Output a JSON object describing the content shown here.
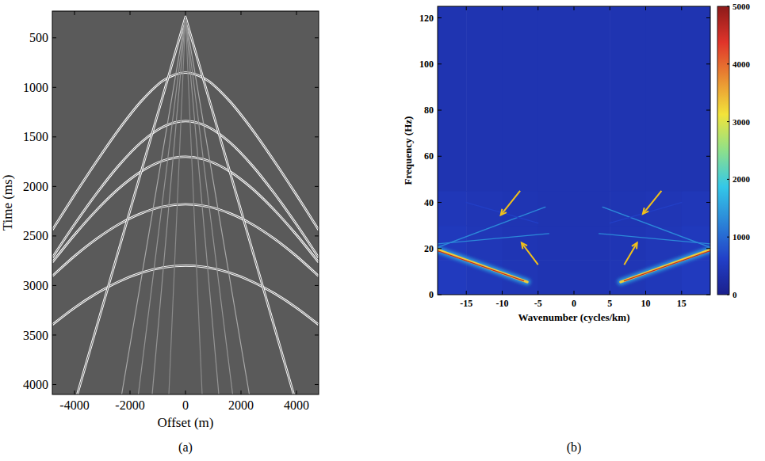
{
  "chart_data": [
    {
      "type": "seismic",
      "label": "(a)",
      "x_label": "Offset (m)",
      "y_label": "Time (ms)",
      "xlim": [
        -4800,
        4800
      ],
      "ylim": [
        230,
        4100
      ],
      "xticks": [
        -4000,
        -2000,
        0,
        2000,
        4000
      ],
      "yticks": [
        500,
        1000,
        1500,
        2000,
        2500,
        3000,
        3500,
        4000
      ],
      "series": [
        {
          "type": "spline",
          "color": "#ffffff",
          "x": [
            -4800,
            -4000,
            -3200,
            -2400,
            -1600,
            -800,
            0,
            800,
            1600,
            2400,
            3200,
            4000,
            4800
          ],
          "values": [
            2439,
            2086,
            1745,
            1424,
            1142,
            931,
            850,
            931,
            1142,
            1424,
            1745,
            2086,
            2439
          ]
        },
        {
          "type": "spline",
          "color": "#ffffff",
          "x": [
            -4800,
            -4000,
            -3200,
            -2400,
            -1600,
            -800,
            0,
            800,
            1600,
            2400,
            3200,
            4000,
            4800
          ],
          "values": [
            2718,
            2383,
            2069,
            1787,
            1555,
            1397,
            1340,
            1397,
            1555,
            1787,
            2069,
            2383,
            2718
          ]
        },
        {
          "type": "spline",
          "color": "#ffffff",
          "x": [
            -4800,
            -4000,
            -3200,
            -2400,
            -1600,
            -800,
            0,
            800,
            1600,
            2400,
            3200,
            4000,
            4800
          ],
          "values": [
            2766,
            2489,
            2238,
            2020,
            1849,
            1739,
            1700,
            1739,
            1849,
            2020,
            2238,
            2489,
            2766
          ]
        },
        {
          "type": "spline",
          "color": "#ffffff",
          "x": [
            -4800,
            -4000,
            -3200,
            -2400,
            -1600,
            -800,
            0,
            800,
            1600,
            2400,
            3200,
            4000,
            4800
          ],
          "values": [
            2905,
            2704,
            2528,
            2382,
            2272,
            2203,
            2180,
            2203,
            2272,
            2382,
            2528,
            2704,
            2905
          ]
        },
        {
          "type": "spline",
          "color": "#ffffff",
          "x": [
            -4800,
            -4000,
            -3200,
            -2400,
            -1600,
            -800,
            0,
            800,
            1600,
            2400,
            3200,
            4000,
            4800
          ],
          "values": [
            3395,
            3225,
            3079,
            2960,
            2872,
            2818,
            2800,
            2818,
            2872,
            2960,
            3079,
            3225,
            3395
          ]
        },
        {
          "type": "line",
          "color": "#ffffff",
          "x": [
            -3900,
            0,
            3900
          ],
          "values": [
            4100,
            290,
            4100
          ]
        },
        {
          "type": "line",
          "color": "#a8a8a8",
          "x": [
            -2300,
            0,
            2300
          ],
          "values": [
            4100,
            290,
            4100
          ]
        },
        {
          "type": "line",
          "color": "#959595",
          "x": [
            -1700,
            0,
            1700
          ],
          "values": [
            4100,
            290,
            4100
          ]
        },
        {
          "type": "line",
          "color": "#959595",
          "x": [
            -1200,
            0,
            1200
          ],
          "values": [
            4100,
            290,
            4100
          ]
        },
        {
          "type": "line",
          "color": "#8a8a8a",
          "x": [
            -600,
            0,
            600
          ],
          "values": [
            4100,
            290,
            4100
          ]
        }
      ]
    },
    {
      "type": "heatmap",
      "label": "(b)",
      "x_label": "Wavenumber (cycles/km)",
      "y_label": "Frequency (Hz)",
      "xlim": [
        -19,
        19
      ],
      "ylim": [
        0,
        125
      ],
      "xticks": [
        -15,
        -10,
        -5,
        0,
        5,
        10,
        15
      ],
      "yticks": [
        0,
        20,
        40,
        60,
        80,
        100,
        120
      ],
      "x_edges": [
        -19,
        -15,
        -10,
        -5,
        5,
        10,
        15,
        19
      ],
      "y_edges": [
        0,
        15,
        30,
        45,
        125
      ],
      "cells": [
        [
          520,
          470,
          430,
          400,
          430,
          470,
          520
        ],
        [
          500,
          450,
          420,
          400,
          420,
          450,
          500
        ],
        [
          460,
          430,
          410,
          390,
          410,
          430,
          460
        ],
        [
          390,
          390,
          390,
          390,
          390,
          390,
          390
        ]
      ],
      "colorbar_range": [
        0,
        5000
      ],
      "colorbar_ticks": [
        0,
        1000,
        2000,
        3000,
        4000,
        5000
      ],
      "series": [
        {
          "line_style": "band",
          "amplitude": 1500,
          "x": [
            -19,
            -6.5
          ],
          "values": [
            19.5,
            5.5
          ]
        },
        {
          "line_style": "thick",
          "amplitude": 3300,
          "x": [
            -19,
            -6.5
          ],
          "values": [
            19.5,
            5.5
          ]
        },
        {
          "line_style": "solid",
          "amplitude": 4600,
          "x": [
            -19,
            -7
          ],
          "values": [
            19,
            6
          ]
        },
        {
          "line_style": "band",
          "amplitude": 1500,
          "x": [
            6.5,
            19
          ],
          "values": [
            5.5,
            19.5
          ]
        },
        {
          "line_style": "thick",
          "amplitude": 3300,
          "x": [
            6.5,
            19
          ],
          "values": [
            5.5,
            19.5
          ]
        },
        {
          "line_style": "solid",
          "amplitude": 4600,
          "x": [
            7,
            19
          ],
          "values": [
            6,
            19
          ]
        },
        {
          "line_style": "solid",
          "amplitude": 1300,
          "x": [
            -19,
            -4
          ],
          "values": [
            20.5,
            38
          ]
        },
        {
          "line_style": "solid",
          "amplitude": 1300,
          "x": [
            -19,
            -3.5
          ],
          "values": [
            22,
            26.5
          ]
        },
        {
          "line_style": "solid",
          "amplitude": 600,
          "x": [
            -15,
            -5
          ],
          "values": [
            40,
            31
          ]
        },
        {
          "line_style": "solid",
          "amplitude": 1300,
          "x": [
            4,
            19
          ],
          "values": [
            38,
            20.5
          ]
        },
        {
          "line_style": "solid",
          "amplitude": 1300,
          "x": [
            3.5,
            19
          ],
          "values": [
            26.5,
            22
          ]
        },
        {
          "line_style": "solid",
          "amplitude": 600,
          "x": [
            5,
            15
          ],
          "values": [
            31,
            40
          ]
        }
      ]
    }
  ]
}
